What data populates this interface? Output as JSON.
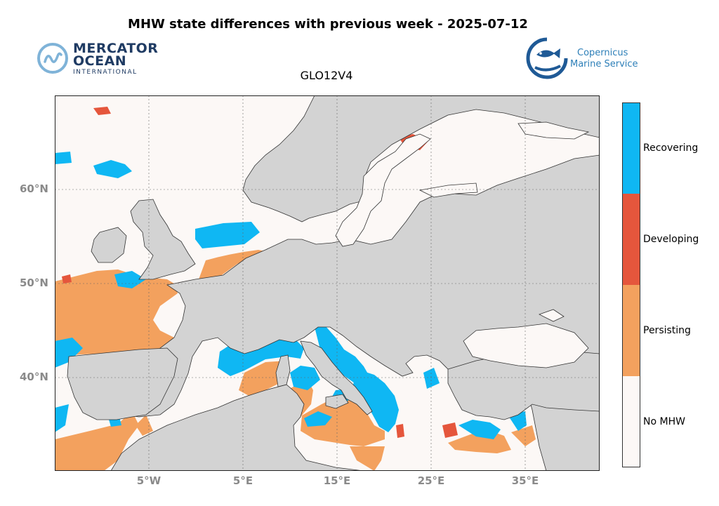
{
  "title": "MHW state differences with previous week - 2025-07-12",
  "subtitle": "GLO12V4",
  "logos": {
    "mercator": {
      "line1": "MERCATOR",
      "line2": "OCEAN",
      "line3": "INTERNATIONAL",
      "icon": "mercator-wave-icon"
    },
    "copernicus": {
      "line1": "Copernicus",
      "line2": "Marine Service",
      "icon": "copernicus-fish-icon"
    }
  },
  "map": {
    "latitude_labels": [
      "60°N",
      "50°N",
      "40°N"
    ],
    "longitude_labels": [
      "5°W",
      "5°E",
      "15°E",
      "25°E",
      "35°E"
    ],
    "colors": {
      "land": "#d3d3d3",
      "no_mhw": "#fcf8f6",
      "persisting": "#f3a15e",
      "developing": "#e5563c",
      "recovering": "#0fb7f3"
    }
  },
  "legend": {
    "categories": [
      {
        "label": "Recovering",
        "color": "#0fb7f3"
      },
      {
        "label": "Developing",
        "color": "#e5563c"
      },
      {
        "label": "Persisting",
        "color": "#f3a15e"
      },
      {
        "label": "No MHW",
        "color": "#fcf8f6"
      }
    ]
  }
}
